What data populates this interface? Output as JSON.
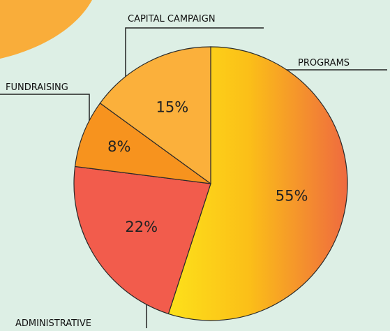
{
  "chart_data": {
    "type": "pie",
    "categories": [
      "PROGRAMS",
      "ADMINISTRATIVE",
      "FUNDRAISING",
      "CAPITAL CAMPAIGN"
    ],
    "values": [
      55,
      22,
      8,
      15
    ],
    "value_labels": [
      "55%",
      "22%",
      "8%",
      "15%"
    ],
    "colors": [
      "#f9b52a",
      "#f25c4c",
      "#f7931e",
      "#fbb03b"
    ]
  }
}
